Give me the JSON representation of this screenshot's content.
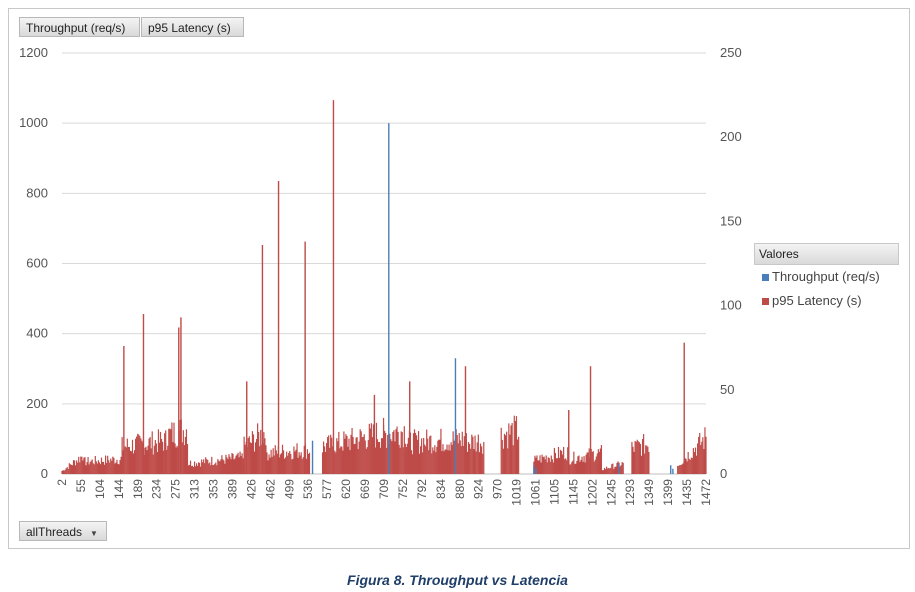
{
  "field_buttons": {
    "throughput": "Throughput (req/s)",
    "latency": "p95 Latency  (s)",
    "filter": "allThreads"
  },
  "legend": {
    "title": "Valores",
    "items": [
      {
        "label": "Throughput (req/s)",
        "color": "#4a7ebb"
      },
      {
        "label": "p95 Latency  (s)",
        "color": "#be4b48"
      }
    ]
  },
  "caption": "Figura 8. Throughput vs Latencia",
  "chart_data": {
    "type": "bar",
    "title": "",
    "xlabel": "",
    "ylabel": "",
    "x_tick_labels": [
      "2",
      "55",
      "104",
      "144",
      "189",
      "234",
      "275",
      "313",
      "353",
      "389",
      "426",
      "462",
      "499",
      "536",
      "577",
      "620",
      "669",
      "709",
      "752",
      "792",
      "834",
      "880",
      "924",
      "970",
      "1019",
      "1061",
      "1105",
      "1145",
      "1202",
      "1245",
      "1293",
      "1349",
      "1399",
      "1435",
      "1472"
    ],
    "ylim_left": [
      0,
      1200
    ],
    "yticks_left": [
      0,
      200,
      400,
      600,
      800,
      1000,
      1200
    ],
    "ylim_right": [
      0,
      250
    ],
    "yticks_right": [
      0,
      50,
      100,
      150,
      200,
      250
    ],
    "grid": true,
    "legend_position": "right",
    "series": [
      {
        "name": "Throughput (req/s)",
        "axis": "left",
        "color": "#4a7ebb",
        "points": [
          {
            "x": 752,
            "y": 1000
          },
          {
            "x": 905,
            "y": 330
          },
          {
            "x": 577,
            "y": 95
          },
          {
            "x": 1085,
            "y": 25
          },
          {
            "x": 1090,
            "y": 15
          },
          {
            "x": 1280,
            "y": 30
          },
          {
            "x": 1399,
            "y": 25
          },
          {
            "x": 1404,
            "y": 15
          }
        ]
      },
      {
        "name": "p95 Latency  (s)",
        "axis": "right",
        "color": "#be4b48",
        "peaks": [
          {
            "x": 189,
            "y": 95
          },
          {
            "x": 144,
            "y": 76
          },
          {
            "x": 275,
            "y": 93
          },
          {
            "x": 270,
            "y": 87
          },
          {
            "x": 426,
            "y": 55
          },
          {
            "x": 462,
            "y": 136
          },
          {
            "x": 499,
            "y": 174
          },
          {
            "x": 560,
            "y": 138
          },
          {
            "x": 625,
            "y": 222
          },
          {
            "x": 719,
            "y": 47
          },
          {
            "x": 800,
            "y": 55
          },
          {
            "x": 928,
            "y": 64
          },
          {
            "x": 1165,
            "y": 38
          },
          {
            "x": 1215,
            "y": 64
          },
          {
            "x": 1430,
            "y": 78
          }
        ],
        "segments": [
          {
            "from": 2,
            "to": 50,
            "from_y": 2,
            "to_y": 12
          },
          {
            "from": 50,
            "to": 140,
            "from_y": 8,
            "to_y": 10
          },
          {
            "from": 140,
            "to": 240,
            "from_y": 18,
            "to_y": 22
          },
          {
            "from": 240,
            "to": 290,
            "from_y": 25,
            "to_y": 30
          },
          {
            "from": 290,
            "to": 420,
            "from_y": 7,
            "to_y": 11
          },
          {
            "from": 420,
            "to": 470,
            "from_y": 18,
            "to_y": 28
          },
          {
            "from": 470,
            "to": 570,
            "from_y": 14,
            "to_y": 16
          },
          {
            "from": 600,
            "to": 740,
            "from_y": 18,
            "to_y": 27
          },
          {
            "from": 740,
            "to": 790,
            "from_y": 26,
            "to_y": 29
          },
          {
            "from": 790,
            "to": 930,
            "from_y": 21,
            "to_y": 23
          },
          {
            "from": 930,
            "to": 970,
            "from_y": 21,
            "to_y": 22
          },
          {
            "from": 1010,
            "to": 1050,
            "from_y": 26,
            "to_y": 29
          },
          {
            "from": 1085,
            "to": 1165,
            "from_y": 9,
            "to_y": 15
          },
          {
            "from": 1165,
            "to": 1240,
            "from_y": 10,
            "to_y": 14
          },
          {
            "from": 1240,
            "to": 1290,
            "from_y": 3,
            "to_y": 7
          },
          {
            "from": 1310,
            "to": 1349,
            "from_y": 17,
            "to_y": 20
          },
          {
            "from": 1415,
            "to": 1480,
            "from_y": 6,
            "to_y": 24
          }
        ]
      }
    ]
  }
}
